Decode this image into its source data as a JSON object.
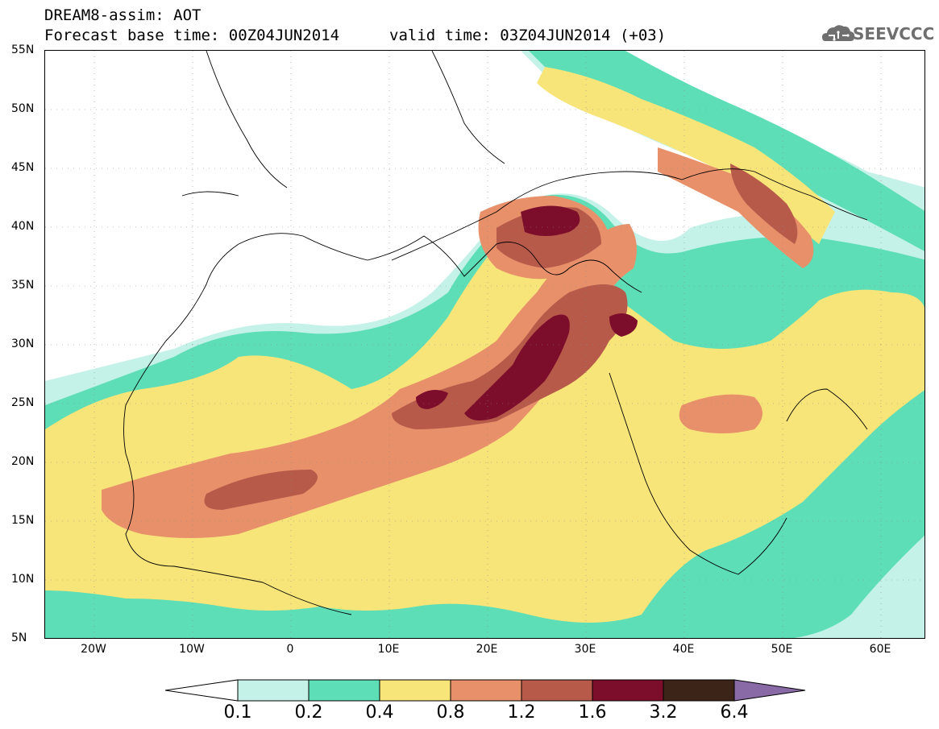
{
  "header": {
    "title": "DREAM8-assim: AOT",
    "base_time": "Forecast base time: 00Z04JUN2014",
    "valid_time": "valid time: 03Z04JUN2014 (+03)",
    "logo_text": "SEEVCCC"
  },
  "axes": {
    "y_labels": [
      "55N",
      "50N",
      "45N",
      "40N",
      "35N",
      "30N",
      "25N",
      "20N",
      "15N",
      "10N",
      "5N"
    ],
    "x_labels": [
      "20W",
      "10W",
      "0",
      "10E",
      "20E",
      "30E",
      "40E",
      "50E",
      "60E"
    ]
  },
  "colorbar": {
    "labels": [
      "0.1",
      "0.2",
      "0.4",
      "0.8",
      "1.2",
      "1.6",
      "3.2",
      "6.4"
    ],
    "colors": [
      "#ffffff",
      "#c4f2e8",
      "#5ddeb6",
      "#f7e57a",
      "#e8906a",
      "#b85a4a",
      "#7c0e2c",
      "#3c2418",
      "#8a6aa6"
    ]
  },
  "legend": {
    "low_color": "#c4f2e8",
    "mid_color": "#5ddeb6",
    "yellow": "#f7e57a",
    "orange": "#e8906a",
    "brown": "#b85a4a",
    "darkred": "#7c0e2c"
  }
}
